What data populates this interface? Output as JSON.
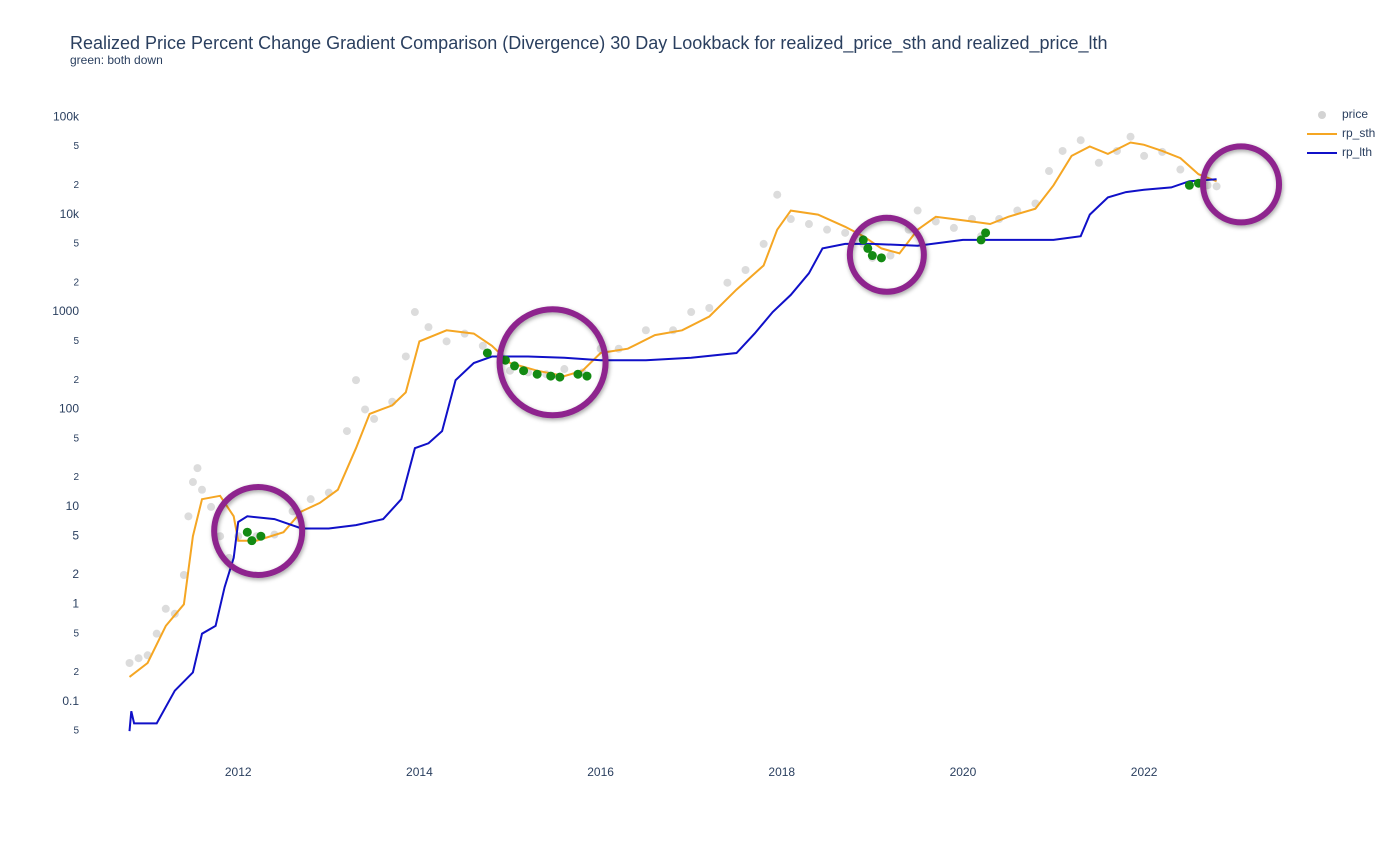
{
  "chart_data": {
    "type": "scatter",
    "title": "Realized Price Percent Change Gradient Comparison (Divergence) 30 Day Lookback for realized_price_sth and realized_price_lth",
    "subtitle": "green: both down",
    "log_y": true,
    "grid": false,
    "legend": "top-right",
    "xlim": [
      2010.75,
      2023.5
    ],
    "xticks": [
      2012,
      2014,
      2016,
      2018,
      2020,
      2022
    ],
    "ylim": [
      0.036,
      150000
    ],
    "yticks": [
      {
        "value": 0.05,
        "label": "5"
      },
      0.1,
      {
        "value": 0.2,
        "label": "2"
      },
      {
        "value": 0.5,
        "label": "5"
      },
      1,
      2,
      5,
      10,
      {
        "value": 20,
        "label": "2"
      },
      {
        "value": 50,
        "label": "5"
      },
      100,
      {
        "value": 200,
        "label": "2"
      },
      {
        "value": 500,
        "label": "5"
      },
      1000,
      {
        "value": 2000,
        "label": "2"
      },
      {
        "value": 5000,
        "label": "5"
      },
      {
        "value": 10000,
        "label": "10k"
      },
      {
        "value": 20000,
        "label": "2"
      },
      {
        "value": 50000,
        "label": "5"
      },
      {
        "value": 100000,
        "label": "100k"
      }
    ],
    "series": [
      {
        "name": "price",
        "mode": "markers",
        "color": "#d3d3d3",
        "x": [
          2010.8,
          2010.9,
          2011.0,
          2011.1,
          2011.2,
          2011.3,
          2011.4,
          2011.45,
          2011.5,
          2011.55,
          2011.6,
          2011.7,
          2011.8,
          2011.9,
          2012.0,
          2012.2,
          2012.4,
          2012.6,
          2012.8,
          2013.0,
          2013.2,
          2013.3,
          2013.4,
          2013.5,
          2013.7,
          2013.85,
          2013.95,
          2014.1,
          2014.3,
          2014.5,
          2014.7,
          2014.9,
          2015.0,
          2015.2,
          2015.4,
          2015.6,
          2015.8,
          2016.0,
          2016.2,
          2016.5,
          2016.8,
          2017.0,
          2017.2,
          2017.4,
          2017.6,
          2017.8,
          2017.95,
          2018.1,
          2018.3,
          2018.5,
          2018.7,
          2018.9,
          2019.0,
          2019.2,
          2019.4,
          2019.5,
          2019.7,
          2019.9,
          2020.1,
          2020.2,
          2020.4,
          2020.6,
          2020.8,
          2020.95,
          2021.1,
          2021.3,
          2021.5,
          2021.7,
          2021.85,
          2022.0,
          2022.2,
          2022.4,
          2022.5,
          2022.7,
          2022.8
        ],
        "values": [
          0.25,
          0.28,
          0.3,
          0.5,
          0.9,
          0.8,
          2,
          8,
          18,
          25,
          15,
          10,
          5,
          3,
          5,
          5,
          5.2,
          9,
          12,
          14,
          60,
          200,
          100,
          80,
          120,
          350,
          1000,
          700,
          500,
          600,
          450,
          350,
          250,
          240,
          230,
          260,
          240,
          420,
          420,
          650,
          650,
          1000,
          1100,
          2000,
          2700,
          5000,
          16000,
          9000,
          8000,
          7000,
          6500,
          5000,
          3600,
          3800,
          7000,
          11000,
          8500,
          7300,
          9000,
          6000,
          9000,
          11000,
          13000,
          28000,
          45000,
          58000,
          34000,
          45000,
          63000,
          40000,
          44000,
          29000,
          20000,
          20000,
          19500
        ]
      },
      {
        "name": "rp_sth",
        "mode": "lines",
        "color": "#f5a623",
        "x": [
          2010.8,
          2011.0,
          2011.2,
          2011.4,
          2011.5,
          2011.6,
          2011.8,
          2011.95,
          2012.0,
          2012.2,
          2012.5,
          2012.7,
          2012.9,
          2013.1,
          2013.3,
          2013.45,
          2013.7,
          2013.85,
          2014.0,
          2014.3,
          2014.6,
          2014.8,
          2015.0,
          2015.3,
          2015.6,
          2015.8,
          2016.0,
          2016.3,
          2016.6,
          2016.9,
          2017.2,
          2017.5,
          2017.8,
          2017.95,
          2018.1,
          2018.4,
          2018.7,
          2018.9,
          2019.1,
          2019.3,
          2019.5,
          2019.7,
          2019.9,
          2020.1,
          2020.3,
          2020.5,
          2020.8,
          2021.0,
          2021.2,
          2021.4,
          2021.6,
          2021.85,
          2022.0,
          2022.2,
          2022.4,
          2022.6,
          2022.8
        ],
        "values": [
          0.18,
          0.25,
          0.6,
          1.0,
          5,
          12,
          13,
          8,
          4.5,
          4.5,
          5.5,
          9,
          11,
          15,
          40,
          90,
          110,
          150,
          500,
          650,
          600,
          450,
          300,
          250,
          220,
          250,
          380,
          420,
          580,
          650,
          900,
          1700,
          3000,
          7000,
          11000,
          10000,
          7500,
          6000,
          4500,
          4000,
          7000,
          9500,
          9000,
          8500,
          8000,
          9500,
          11500,
          20000,
          40000,
          50000,
          42000,
          55000,
          52000,
          45000,
          38000,
          26000,
          22000
        ]
      },
      {
        "name": "rp_lth",
        "mode": "lines",
        "color": "#1010c8",
        "x": [
          2010.8,
          2010.82,
          2010.85,
          2011.1,
          2011.3,
          2011.5,
          2011.6,
          2011.75,
          2011.85,
          2011.95,
          2012.0,
          2012.1,
          2012.4,
          2012.7,
          2013.0,
          2013.3,
          2013.6,
          2013.8,
          2013.95,
          2014.1,
          2014.25,
          2014.4,
          2014.6,
          2014.8,
          2015.2,
          2015.6,
          2016.0,
          2016.5,
          2017.0,
          2017.5,
          2017.7,
          2017.9,
          2018.1,
          2018.3,
          2018.45,
          2018.7,
          2019.0,
          2019.5,
          2020.0,
          2020.5,
          2021.0,
          2021.3,
          2021.4,
          2021.6,
          2021.8,
          2022.0,
          2022.3,
          2022.5,
          2022.8
        ],
        "values": [
          0.05,
          0.08,
          0.06,
          0.06,
          0.13,
          0.2,
          0.5,
          0.6,
          1.5,
          3,
          7,
          8,
          7.5,
          6,
          6,
          6.5,
          7.5,
          12,
          40,
          45,
          60,
          200,
          300,
          350,
          350,
          340,
          320,
          320,
          340,
          380,
          600,
          1000,
          1500,
          2500,
          4500,
          5000,
          5000,
          4800,
          5500,
          5500,
          5500,
          6000,
          10000,
          15000,
          17000,
          18000,
          19000,
          22000,
          23000
        ]
      },
      {
        "mode": "markers",
        "color": "#138a13",
        "x": [
          2012.1,
          2012.15,
          2012.25,
          2014.75,
          2014.95,
          2015.05,
          2015.15,
          2015.3,
          2015.45,
          2015.55,
          2015.75,
          2015.85,
          2018.9,
          2018.95,
          2019.0,
          2019.1,
          2020.2,
          2020.25,
          2022.5,
          2022.6
        ],
        "values": [
          5.5,
          4.5,
          5,
          380,
          320,
          280,
          250,
          230,
          220,
          215,
          230,
          220,
          5500,
          4500,
          3800,
          3600,
          5500,
          6500,
          20000,
          21000
        ]
      }
    ],
    "annotations": [
      {
        "x": 2012.22,
        "y": 5.66,
        "color": "#8e248e"
      },
      {
        "x": 2015.47,
        "y": 305,
        "color": "#8e248e"
      },
      {
        "x": 2019.16,
        "y": 3870,
        "color": "#8e248e"
      },
      {
        "x": 2023.07,
        "y": 20400,
        "color": "#8e248e"
      }
    ]
  }
}
